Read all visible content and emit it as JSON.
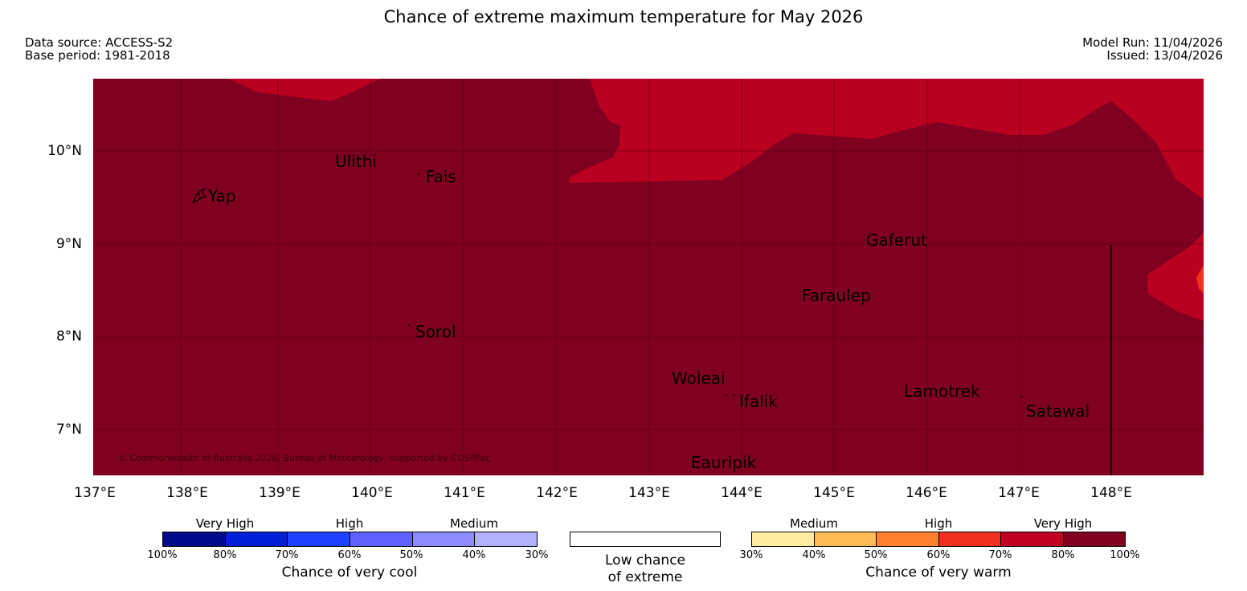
{
  "title": "Chance of extreme maximum temperature for May 2026",
  "meta": {
    "data_source": "Data source: ACCESS-S2",
    "base_period": "Base period: 1981-2018",
    "model_run": "Model Run: 11/04/2026",
    "issued": "Issued: 13/04/2026"
  },
  "map": {
    "copyright": "© Commonwealth of Australia 2026, Bureau of Meteorology, supported by COSPPac",
    "lat_labels": [
      "10°N",
      "9°N",
      "8°N",
      "7°N"
    ],
    "lon_labels": [
      "137°E",
      "138°E",
      "139°E",
      "140°E",
      "141°E",
      "142°E",
      "143°E",
      "144°E",
      "145°E",
      "146°E",
      "147°E",
      "148°E"
    ],
    "places": [
      "Yap",
      "Ulithi",
      "Fais",
      "Gaferut",
      "Faraulep",
      "Sorol",
      "Woleai",
      "Ifalik",
      "Lamotrek",
      "Satawal",
      "Eauripik"
    ],
    "colors": {
      "very_high": "#800020",
      "high": "#BA0020",
      "medium_high": "#F03020"
    }
  },
  "legend": {
    "cool": {
      "categories": [
        "Very High",
        "High",
        "Medium"
      ],
      "percentages": [
        "100%",
        "80%",
        "70%",
        "60%",
        "50%",
        "40%",
        "30%"
      ],
      "colors": [
        "#000c8c",
        "#0020d8",
        "#2040ff",
        "#6060ff",
        "#8c8cff",
        "#b0b0ff"
      ],
      "caption": "Chance of very cool"
    },
    "neutral": {
      "caption_line1": "Low chance",
      "caption_line2": "of extreme"
    },
    "warm": {
      "categories": [
        "Medium",
        "High",
        "Very High"
      ],
      "percentages": [
        "30%",
        "40%",
        "50%",
        "60%",
        "70%",
        "80%",
        "100%"
      ],
      "colors": [
        "#ffec9c",
        "#ffbc54",
        "#ff8030",
        "#f03020",
        "#c00020",
        "#800020"
      ],
      "caption": "Chance of very warm"
    }
  }
}
